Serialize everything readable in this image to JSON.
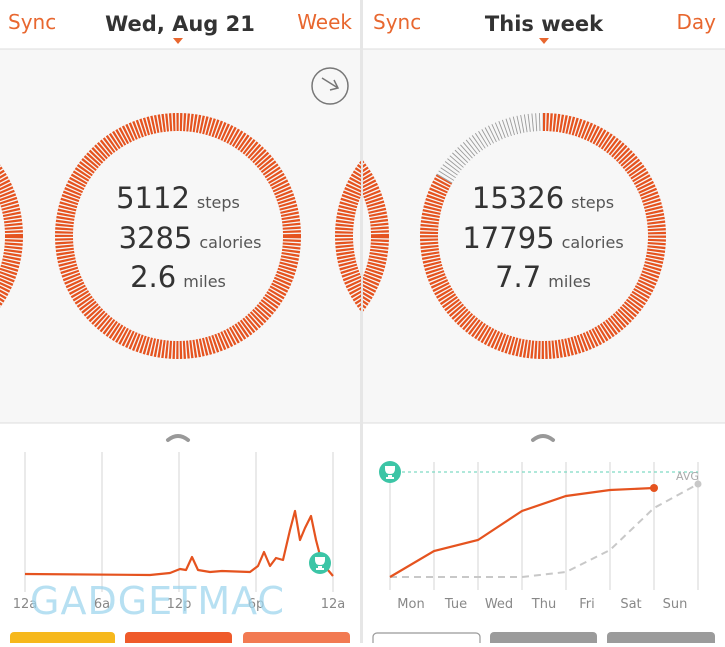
{
  "left": {
    "header": {
      "left": "Sync",
      "title": "Wed, Aug 21",
      "right": "Week"
    },
    "stats": [
      {
        "value": "5112",
        "unit": "steps"
      },
      {
        "value": "3285",
        "unit": "calories"
      },
      {
        "value": "2.6",
        "unit": "miles"
      }
    ],
    "chart": {
      "x_labels": [
        "12a",
        "6a",
        "12p",
        "6p",
        "12a"
      ]
    }
  },
  "right": {
    "header": {
      "left": "Sync",
      "title": "This week",
      "right": "Day"
    },
    "stats": [
      {
        "value": "15326",
        "unit": "steps"
      },
      {
        "value": "17795",
        "unit": "calories"
      },
      {
        "value": "7.7",
        "unit": "miles"
      }
    ],
    "chart": {
      "x_labels": [
        "Mon",
        "Tue",
        "Wed",
        "Thu",
        "Fri",
        "Sat",
        "Sun"
      ],
      "avg_label": "AVG"
    }
  },
  "watermark": "GADGETMAC"
}
